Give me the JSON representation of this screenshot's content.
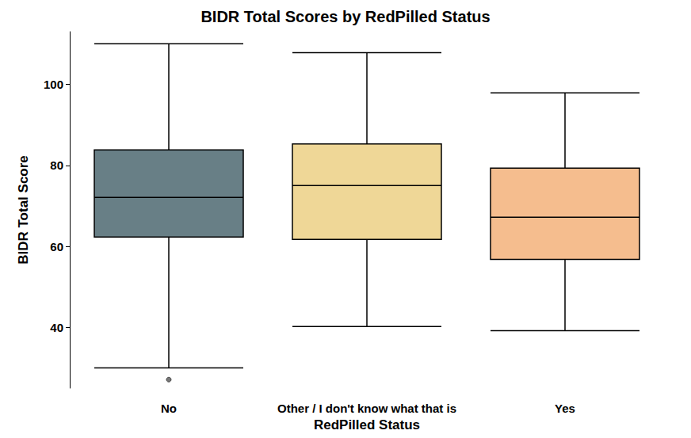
{
  "chart_data": {
    "type": "boxplot",
    "title": "BIDR Total Scores by RedPilled Status",
    "x_label": "RedPilled Status",
    "y_label": "BIDR Total Score",
    "categories": [
      "No",
      "Other / I don't know what that is",
      "Yes"
    ],
    "values": [
      [
        30,
        62.3,
        72.1,
        83.8,
        110
      ],
      [
        40.2,
        61.7,
        75,
        85.3,
        107.8
      ],
      [
        39.2,
        56.8,
        67.2,
        79.3,
        97.9
      ]
    ],
    "outliers": [
      [
        27.1
      ],
      [],
      []
    ],
    "colors": [
      "#687f86",
      "#efd797",
      "#f5bd8e"
    ],
    "ylim": [
      25,
      113
    ],
    "yticks": [
      40,
      60,
      80,
      100
    ],
    "grid": false
  }
}
